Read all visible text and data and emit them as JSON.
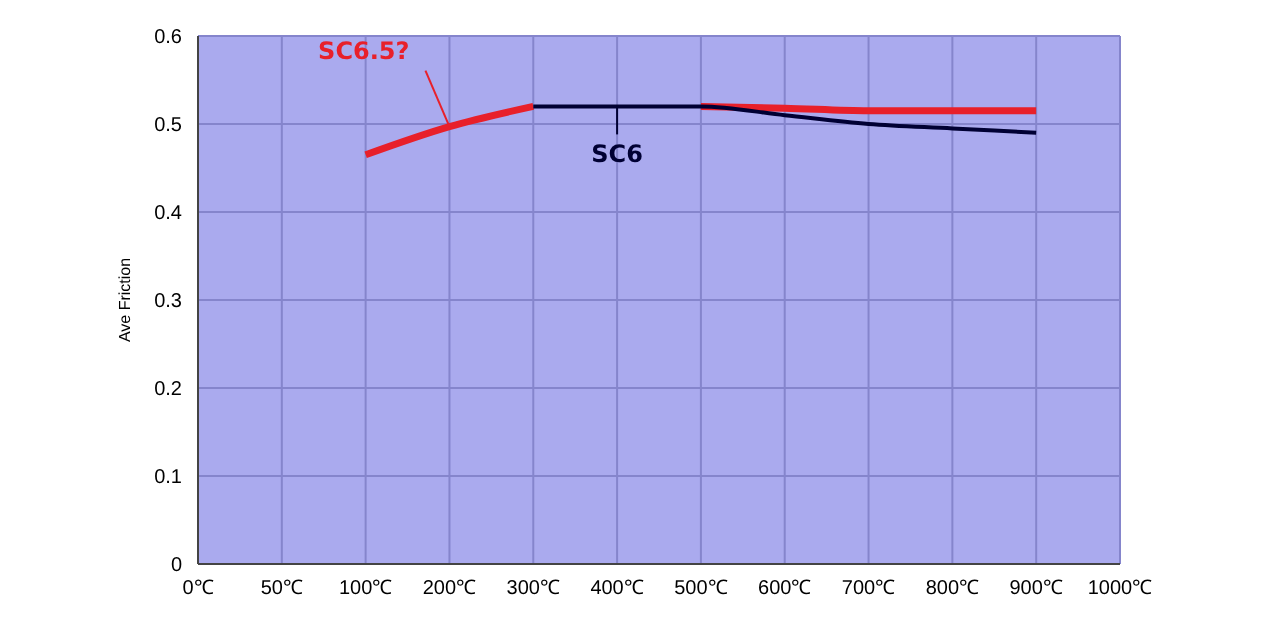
{
  "chart_data": {
    "type": "line",
    "ylabel": "Ave Friction",
    "categories": [
      "0℃",
      "50℃",
      "100℃",
      "200℃",
      "300℃",
      "400℃",
      "500℃",
      "600℃",
      "700℃",
      "800℃",
      "900℃",
      "1000℃"
    ],
    "series": [
      {
        "name": "SC6.5?",
        "color": "#e8202a",
        "values": [
          null,
          null,
          0.465,
          0.497,
          0.52,
          null,
          0.52,
          0.518,
          0.515,
          0.515,
          0.515,
          null
        ]
      },
      {
        "name": "SC6",
        "color": "#000033",
        "values": [
          null,
          null,
          null,
          null,
          0.52,
          0.52,
          0.52,
          0.51,
          0.5,
          0.495,
          0.49,
          null
        ]
      }
    ],
    "ylim": [
      0,
      0.6
    ],
    "yticks": [
      0,
      0.1,
      0.2,
      0.3,
      0.4,
      0.5,
      0.6
    ],
    "grid": true,
    "marker": "none",
    "line_style": "solid"
  }
}
